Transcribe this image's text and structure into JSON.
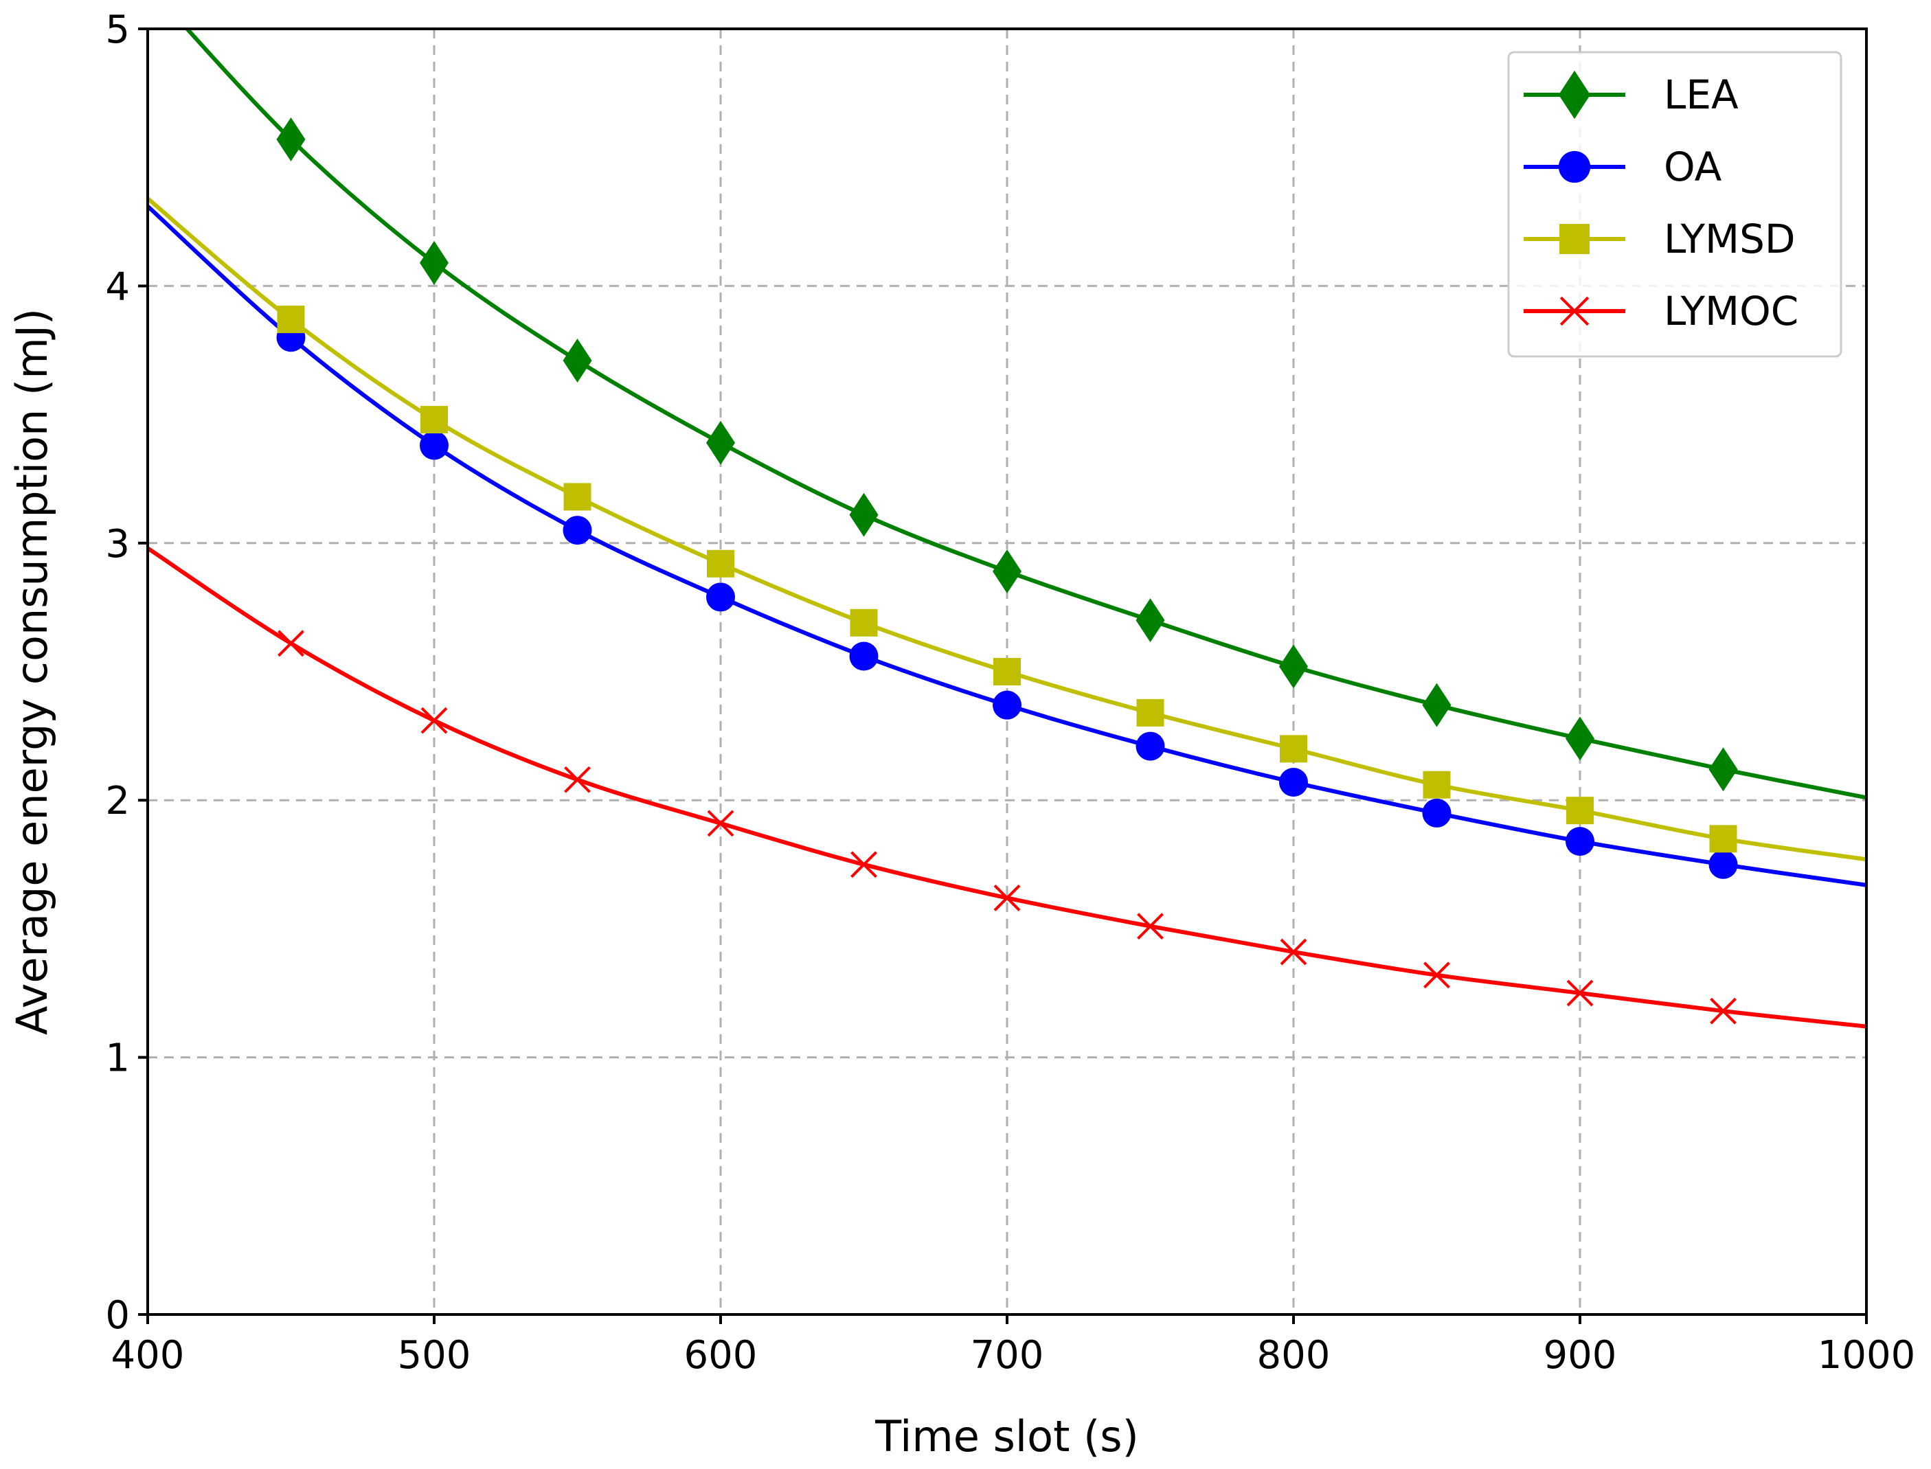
{
  "chart_data": {
    "type": "line",
    "title": "",
    "xlabel": "Time slot (s)",
    "ylabel": "Average energy consumption (mJ)",
    "xlim": [
      400,
      1000
    ],
    "ylim": [
      0,
      5
    ],
    "x_ticks": [
      400,
      500,
      600,
      700,
      800,
      900,
      1000
    ],
    "y_ticks": [
      0,
      1,
      2,
      3,
      4,
      5
    ],
    "grid": true,
    "legend_position": "top-right",
    "x": [
      400,
      450,
      500,
      550,
      600,
      650,
      700,
      750,
      800,
      850,
      900,
      950,
      1000
    ],
    "series": [
      {
        "name": "LEA",
        "color": "#008000",
        "marker": "diamond",
        "values": [
          5.17,
          4.57,
          4.09,
          3.71,
          3.39,
          3.11,
          2.89,
          2.7,
          2.52,
          2.37,
          2.24,
          2.12,
          2.01
        ]
      },
      {
        "name": "OA",
        "color": "#0000ff",
        "marker": "circle",
        "values": [
          4.31,
          3.8,
          3.38,
          3.05,
          2.79,
          2.56,
          2.37,
          2.21,
          2.07,
          1.95,
          1.84,
          1.75,
          1.67
        ]
      },
      {
        "name": "LYMSD",
        "color": "#bfbf00",
        "marker": "square",
        "values": [
          4.34,
          3.87,
          3.48,
          3.18,
          2.92,
          2.69,
          2.5,
          2.34,
          2.2,
          2.06,
          1.96,
          1.85,
          1.77
        ]
      },
      {
        "name": "LYMOC",
        "color": "#ff0000",
        "marker": "x",
        "values": [
          2.98,
          2.61,
          2.31,
          2.08,
          1.91,
          1.75,
          1.62,
          1.51,
          1.41,
          1.32,
          1.25,
          1.18,
          1.12
        ]
      }
    ]
  }
}
